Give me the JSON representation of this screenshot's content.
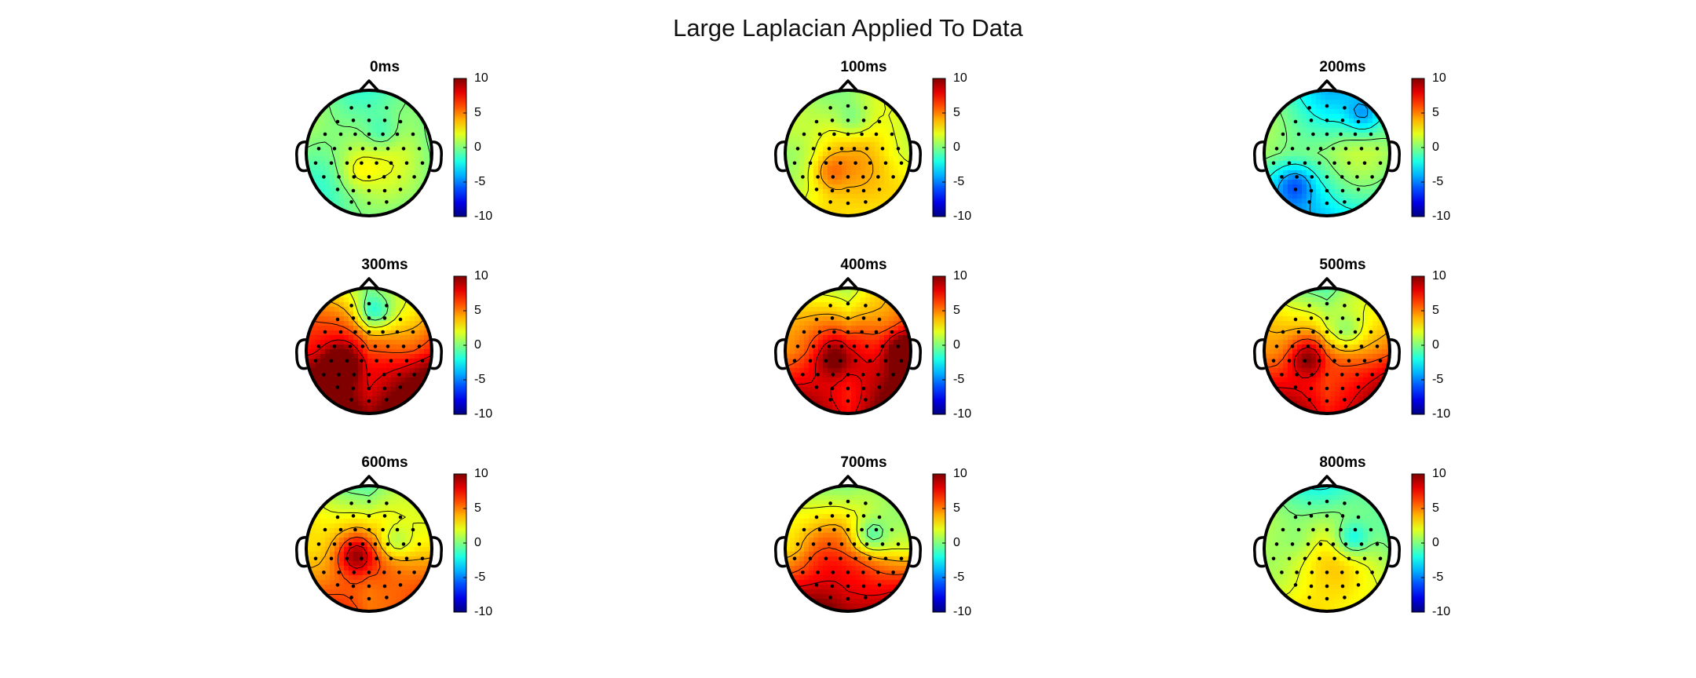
{
  "figure": {
    "title": "Large Laplacian Applied To Data"
  },
  "chart_data": {
    "type": "heatmap",
    "title": "Large Laplacian Applied To Data",
    "colormap": "jet",
    "clim": [
      -10,
      10
    ],
    "colorbar_ticks": [
      "10",
      "5",
      "0",
      "-5",
      "-10"
    ],
    "contours": true,
    "electrode_markers": true,
    "panels": [
      {
        "label": "0ms",
        "mean": 0.3,
        "front": -0.5,
        "back": -0.5,
        "left": 0,
        "right": 0,
        "center": 0.5,
        "blobs": [
          [
            0.2,
            -0.3,
            -2
          ],
          [
            -0.2,
            0.3,
            1.5
          ]
        ]
      },
      {
        "label": "100ms",
        "mean": 1.0,
        "front": 0,
        "back": 2,
        "left": 0.5,
        "right": 1.5,
        "center": 1.5,
        "blobs": [
          [
            0.1,
            -0.5,
            -2
          ],
          [
            -0.3,
            0.3,
            2
          ]
        ]
      },
      {
        "label": "200ms",
        "mean": -0.5,
        "front": -2,
        "back": -3,
        "left": 1,
        "right": 1,
        "center": 0.5,
        "blobs": [
          [
            -0.5,
            0.5,
            -3
          ],
          [
            0.6,
            -0.6,
            -3
          ]
        ]
      },
      {
        "label": "300ms",
        "mean": 3.0,
        "front": -3,
        "back": 8,
        "left": 5,
        "right": 5,
        "center": 2,
        "blobs": [
          [
            -0.45,
            0.2,
            5
          ],
          [
            0.1,
            -0.6,
            -4
          ]
        ]
      },
      {
        "label": "400ms",
        "mean": 2.5,
        "front": -2,
        "back": 6,
        "left": 3,
        "right": 7,
        "center": 3,
        "blobs": [
          [
            -0.2,
            0.1,
            3
          ],
          [
            0.9,
            0,
            6
          ]
        ]
      },
      {
        "label": "500ms",
        "mean": 2.0,
        "front": -3,
        "back": 6,
        "left": 4,
        "right": 5,
        "center": 1,
        "blobs": [
          [
            -0.3,
            0.1,
            4
          ],
          [
            0.3,
            -0.3,
            -3
          ]
        ]
      },
      {
        "label": "600ms",
        "mean": 1.5,
        "front": -2,
        "back": 4,
        "left": 3,
        "right": 3,
        "center": 2,
        "blobs": [
          [
            -0.2,
            0.1,
            4
          ],
          [
            0.4,
            -0.1,
            -3
          ]
        ]
      },
      {
        "label": "700ms",
        "mean": 2.0,
        "front": -2,
        "back": 8,
        "left": 2,
        "right": 1,
        "center": 2,
        "blobs": [
          [
            0.35,
            -0.2,
            -4
          ],
          [
            -0.5,
            0,
            1
          ]
        ]
      },
      {
        "label": "800ms",
        "mean": 0.8,
        "front": -2,
        "back": 2,
        "left": 1,
        "right": 0,
        "center": 1,
        "blobs": [
          [
            0.4,
            -0.15,
            -4
          ],
          [
            -0.4,
            -0.1,
            -1
          ]
        ]
      }
    ],
    "electrodes": [
      [
        -0.28,
        -0.72
      ],
      [
        0,
        -0.75
      ],
      [
        0.28,
        -0.72
      ],
      [
        -0.5,
        -0.5
      ],
      [
        -0.25,
        -0.52
      ],
      [
        0,
        -0.52
      ],
      [
        0.25,
        -0.52
      ],
      [
        0.5,
        -0.5
      ],
      [
        -0.7,
        -0.3
      ],
      [
        -0.45,
        -0.3
      ],
      [
        -0.22,
        -0.3
      ],
      [
        0,
        -0.3
      ],
      [
        0.22,
        -0.3
      ],
      [
        0.45,
        -0.3
      ],
      [
        0.7,
        -0.3
      ],
      [
        -0.8,
        -0.07
      ],
      [
        -0.55,
        -0.07
      ],
      [
        -0.3,
        -0.07
      ],
      [
        -0.1,
        -0.07
      ],
      [
        0.1,
        -0.07
      ],
      [
        0.3,
        -0.07
      ],
      [
        0.55,
        -0.07
      ],
      [
        0.8,
        -0.07
      ],
      [
        -0.85,
        0.16
      ],
      [
        -0.6,
        0.16
      ],
      [
        -0.35,
        0.16
      ],
      [
        -0.12,
        0.16
      ],
      [
        0.12,
        0.16
      ],
      [
        0.35,
        0.16
      ],
      [
        0.6,
        0.16
      ],
      [
        0.85,
        0.16
      ],
      [
        -0.72,
        0.38
      ],
      [
        -0.48,
        0.38
      ],
      [
        -0.24,
        0.38
      ],
      [
        0,
        0.38
      ],
      [
        0.24,
        0.38
      ],
      [
        0.48,
        0.38
      ],
      [
        0.72,
        0.38
      ],
      [
        -0.5,
        0.58
      ],
      [
        -0.25,
        0.6
      ],
      [
        0,
        0.6
      ],
      [
        0.25,
        0.6
      ],
      [
        0.5,
        0.58
      ],
      [
        -0.28,
        0.78
      ],
      [
        0,
        0.8
      ],
      [
        0.28,
        0.78
      ]
    ]
  }
}
